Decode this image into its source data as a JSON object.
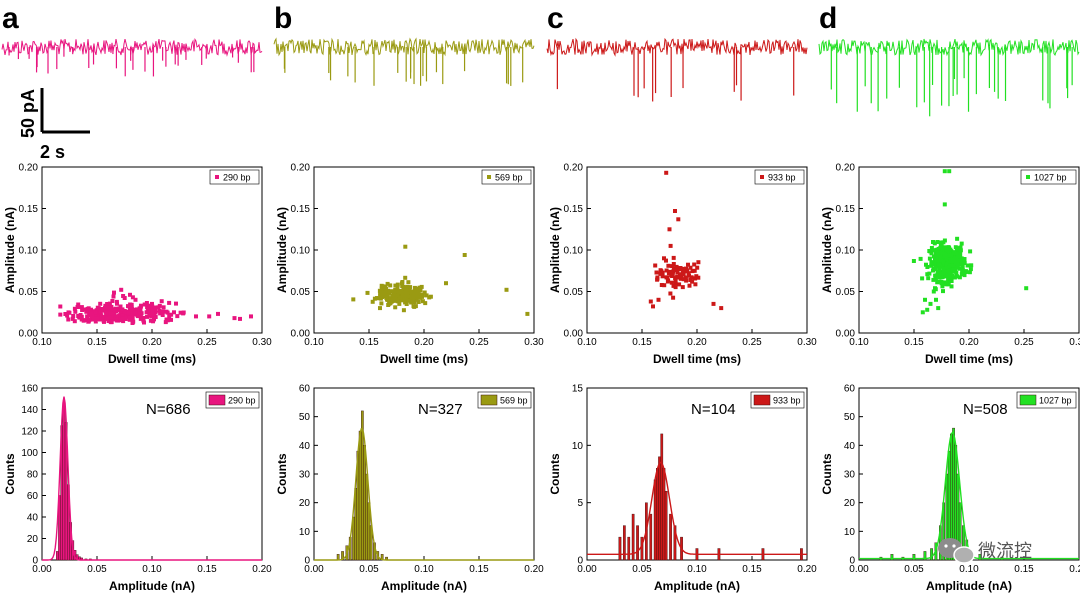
{
  "figure": {
    "scale_bar": {
      "current_label": "50 pA",
      "time_label": "2 s"
    },
    "watermark": {
      "text": "微流控"
    }
  },
  "chart_data": [
    {
      "panel": "a",
      "color": "#e8157f",
      "fragment": "290 bp",
      "trace": {
        "type": "current-trace",
        "events": 30,
        "spike_depth": [
          6,
          30
        ]
      },
      "scatter": {
        "type": "scatter",
        "xlabel": "Dwell time (ms)",
        "ylabel": "Amplitude (nA)",
        "xlim": [
          0.1,
          0.3
        ],
        "ylim": [
          0,
          0.2
        ],
        "xticks": [
          "0.10",
          "0.15",
          "0.20",
          "0.25",
          "0.30"
        ],
        "yticks": [
          "0.00",
          "0.05",
          "0.10",
          "0.15",
          "0.20"
        ],
        "legend": "290 bp",
        "legend_position": "top-right",
        "cluster": {
          "n": 300,
          "x_mean": 0.17,
          "x_sd": 0.022,
          "y_mean": 0.022,
          "y_sd": 0.007
        },
        "points": [
          [
            0.128,
            0.017
          ],
          [
            0.22,
            0.025
          ],
          [
            0.24,
            0.02
          ],
          [
            0.275,
            0.018
          ],
          [
            0.28,
            0.017
          ],
          [
            0.29,
            0.02
          ],
          [
            0.26,
            0.023
          ],
          [
            0.252,
            0.02
          ],
          [
            0.2,
            0.035
          ],
          [
            0.172,
            0.052
          ],
          [
            0.18,
            0.046
          ],
          [
            0.165,
            0.044
          ],
          [
            0.185,
            0.04
          ]
        ]
      },
      "histogram": {
        "type": "bar",
        "xlabel": "Amplitude (nA)",
        "ylabel": "Counts",
        "xlim": [
          0,
          0.2
        ],
        "ylim": [
          0,
          160
        ],
        "xticks": [
          "0.00",
          "0.05",
          "0.10",
          "0.15",
          "0.20"
        ],
        "yticks": [
          "0",
          "20",
          "40",
          "60",
          "80",
          "100",
          "120",
          "140",
          "160"
        ],
        "n_label": "N=686",
        "legend": "290 bp",
        "bins": [
          [
            0.014,
            8
          ],
          [
            0.016,
            60
          ],
          [
            0.018,
            125
          ],
          [
            0.02,
            148
          ],
          [
            0.022,
            128
          ],
          [
            0.024,
            70
          ],
          [
            0.026,
            35
          ],
          [
            0.028,
            18
          ],
          [
            0.03,
            9
          ],
          [
            0.032,
            5
          ],
          [
            0.034,
            3
          ],
          [
            0.036,
            2
          ],
          [
            0.04,
            1
          ],
          [
            0.044,
            1
          ]
        ],
        "fit": {
          "mu": 0.02,
          "sigma": 0.0035,
          "amp": 152
        }
      }
    },
    {
      "panel": "b",
      "color": "#9a9a12",
      "fragment": "569 bp",
      "trace": {
        "type": "current-trace",
        "events": 22,
        "spike_depth": [
          20,
          40
        ]
      },
      "scatter": {
        "type": "scatter",
        "xlabel": "Dwell time (ms)",
        "ylabel": "Amplitude (nA)",
        "xlim": [
          0.1,
          0.3
        ],
        "ylim": [
          0,
          0.2
        ],
        "xticks": [
          "0.10",
          "0.15",
          "0.20",
          "0.25",
          "0.30"
        ],
        "yticks": [
          "0.00",
          "0.05",
          "0.10",
          "0.15",
          "0.20"
        ],
        "legend": "569 bp",
        "legend_position": "top-right",
        "cluster": {
          "n": 220,
          "x_mean": 0.18,
          "x_sd": 0.011,
          "y_mean": 0.046,
          "y_sd": 0.0065
        },
        "points": [
          [
            0.183,
            0.104
          ],
          [
            0.237,
            0.094
          ],
          [
            0.275,
            0.052
          ],
          [
            0.294,
            0.023
          ],
          [
            0.16,
            0.03
          ],
          [
            0.22,
            0.06
          ]
        ]
      },
      "histogram": {
        "type": "bar",
        "xlabel": "Amplitude (nA)",
        "ylabel": "Counts",
        "xlim": [
          0,
          0.2
        ],
        "ylim": [
          0,
          60
        ],
        "xticks": [
          "0.00",
          "0.05",
          "0.10",
          "0.15",
          "0.20"
        ],
        "yticks": [
          "0",
          "10",
          "20",
          "30",
          "40",
          "50",
          "60"
        ],
        "n_label": "N=327",
        "legend": "569 bp",
        "bins": [
          [
            0.022,
            2
          ],
          [
            0.026,
            3
          ],
          [
            0.03,
            5
          ],
          [
            0.033,
            8
          ],
          [
            0.036,
            15
          ],
          [
            0.038,
            25
          ],
          [
            0.04,
            38
          ],
          [
            0.042,
            45
          ],
          [
            0.044,
            52
          ],
          [
            0.046,
            40
          ],
          [
            0.048,
            30
          ],
          [
            0.05,
            20
          ],
          [
            0.052,
            12
          ],
          [
            0.055,
            6
          ],
          [
            0.058,
            3
          ],
          [
            0.062,
            2
          ],
          [
            0.066,
            1
          ]
        ],
        "fit": {
          "mu": 0.0435,
          "sigma": 0.0055,
          "amp": 46
        }
      }
    },
    {
      "panel": "c",
      "color": "#cc1818",
      "fragment": "933 bp",
      "trace": {
        "type": "current-trace",
        "events": 12,
        "spike_depth": [
          30,
          55
        ]
      },
      "scatter": {
        "type": "scatter",
        "xlabel": "Dwell time (ms)",
        "ylabel": "Amplitude (nA)",
        "xlim": [
          0.1,
          0.3
        ],
        "ylim": [
          0,
          0.2
        ],
        "xticks": [
          "0.10",
          "0.15",
          "0.20",
          "0.25",
          "0.30"
        ],
        "yticks": [
          "0.00",
          "0.05",
          "0.10",
          "0.15",
          "0.20"
        ],
        "legend": "933 bp",
        "legend_position": "top-right",
        "cluster": {
          "n": 85,
          "x_mean": 0.182,
          "x_sd": 0.01,
          "y_mean": 0.07,
          "y_sd": 0.01
        },
        "points": [
          [
            0.172,
            0.193
          ],
          [
            0.18,
            0.147
          ],
          [
            0.183,
            0.137
          ],
          [
            0.175,
            0.125
          ],
          [
            0.158,
            0.038
          ],
          [
            0.16,
            0.032
          ],
          [
            0.165,
            0.04
          ],
          [
            0.222,
            0.03
          ],
          [
            0.215,
            0.035
          ],
          [
            0.176,
            0.105
          ],
          [
            0.17,
            0.09
          ]
        ]
      },
      "histogram": {
        "type": "bar",
        "xlabel": "Amplitude (nA)",
        "ylabel": "Counts",
        "xlim": [
          0,
          0.2
        ],
        "ylim": [
          0,
          15
        ],
        "xticks": [
          "0.00",
          "0.05",
          "0.10",
          "0.15",
          "0.20"
        ],
        "yticks": [
          "0",
          "5",
          "10",
          "15"
        ],
        "n_label": "N=104",
        "legend": "933 bp",
        "bins": [
          [
            0.03,
            2
          ],
          [
            0.034,
            3
          ],
          [
            0.038,
            2
          ],
          [
            0.042,
            4
          ],
          [
            0.046,
            3
          ],
          [
            0.05,
            2
          ],
          [
            0.054,
            5
          ],
          [
            0.058,
            4
          ],
          [
            0.062,
            7
          ],
          [
            0.064,
            8
          ],
          [
            0.066,
            9
          ],
          [
            0.068,
            11
          ],
          [
            0.07,
            8
          ],
          [
            0.072,
            6
          ],
          [
            0.076,
            4
          ],
          [
            0.08,
            3
          ],
          [
            0.086,
            2
          ],
          [
            0.1,
            1
          ],
          [
            0.12,
            1
          ],
          [
            0.16,
            1
          ],
          [
            0.195,
            1
          ]
        ],
        "fit": {
          "mu": 0.067,
          "sigma": 0.008,
          "amp": 8,
          "baseline": 0.5
        }
      }
    },
    {
      "panel": "d",
      "color": "#22e022",
      "fragment": "1027 bp",
      "trace": {
        "type": "current-trace",
        "events": 30,
        "spike_depth": [
          30,
          70
        ]
      },
      "scatter": {
        "type": "scatter",
        "xlabel": "Dwell time (ms)",
        "ylabel": "Amplitude (nA)",
        "xlim": [
          0.1,
          0.3
        ],
        "ylim": [
          0,
          0.2
        ],
        "xticks": [
          "0.10",
          "0.15",
          "0.20",
          "0.25",
          "0.30"
        ],
        "yticks": [
          "0.00",
          "0.05",
          "0.10",
          "0.15",
          "0.20"
        ],
        "legend": "1027 bp",
        "legend_position": "top-right",
        "cluster": {
          "n": 320,
          "x_mean": 0.18,
          "x_sd": 0.008,
          "y_mean": 0.085,
          "y_sd": 0.011
        },
        "points": [
          [
            0.178,
            0.195
          ],
          [
            0.182,
            0.195
          ],
          [
            0.178,
            0.155
          ],
          [
            0.252,
            0.054
          ],
          [
            0.158,
            0.025
          ],
          [
            0.162,
            0.028
          ],
          [
            0.165,
            0.035
          ],
          [
            0.17,
            0.04
          ],
          [
            0.168,
            0.05
          ],
          [
            0.172,
            0.03
          ],
          [
            0.175,
            0.06
          ],
          [
            0.16,
            0.04
          ]
        ]
      },
      "histogram": {
        "type": "bar",
        "xlabel": "Amplitude (nA)",
        "ylabel": "Counts",
        "xlim": [
          0,
          0.2
        ],
        "ylim": [
          0,
          60
        ],
        "xticks": [
          "0.00",
          "0.05",
          "0.10",
          "0.15",
          "0.20"
        ],
        "yticks": [
          "0",
          "10",
          "20",
          "30",
          "40",
          "50",
          "60"
        ],
        "n_label": "N=508",
        "legend": "1027 bp",
        "bins": [
          [
            0.02,
            1
          ],
          [
            0.03,
            2
          ],
          [
            0.04,
            1
          ],
          [
            0.05,
            2
          ],
          [
            0.06,
            3
          ],
          [
            0.066,
            4
          ],
          [
            0.07,
            6
          ],
          [
            0.074,
            12
          ],
          [
            0.077,
            20
          ],
          [
            0.08,
            30
          ],
          [
            0.082,
            38
          ],
          [
            0.084,
            44
          ],
          [
            0.086,
            46
          ],
          [
            0.088,
            40
          ],
          [
            0.09,
            30
          ],
          [
            0.092,
            20
          ],
          [
            0.095,
            12
          ],
          [
            0.098,
            7
          ],
          [
            0.102,
            3
          ],
          [
            0.11,
            2
          ],
          [
            0.13,
            1
          ]
        ],
        "fit": {
          "mu": 0.085,
          "sigma": 0.0065,
          "amp": 44,
          "baseline": 0.5
        }
      }
    }
  ]
}
